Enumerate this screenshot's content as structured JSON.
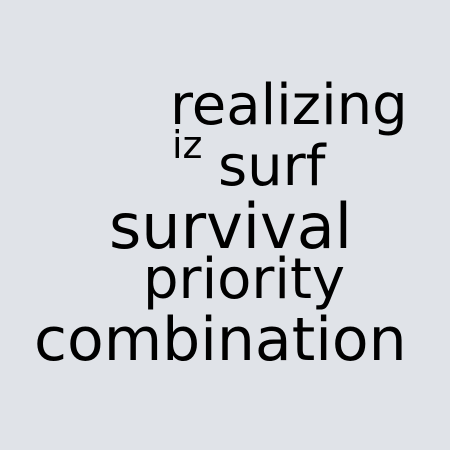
{
  "words": [
    "realizing",
    "iz",
    "surf",
    "survival",
    "priority",
    "combination"
  ],
  "colors": {
    "background": "#e0e3e8",
    "text": "#000000"
  }
}
